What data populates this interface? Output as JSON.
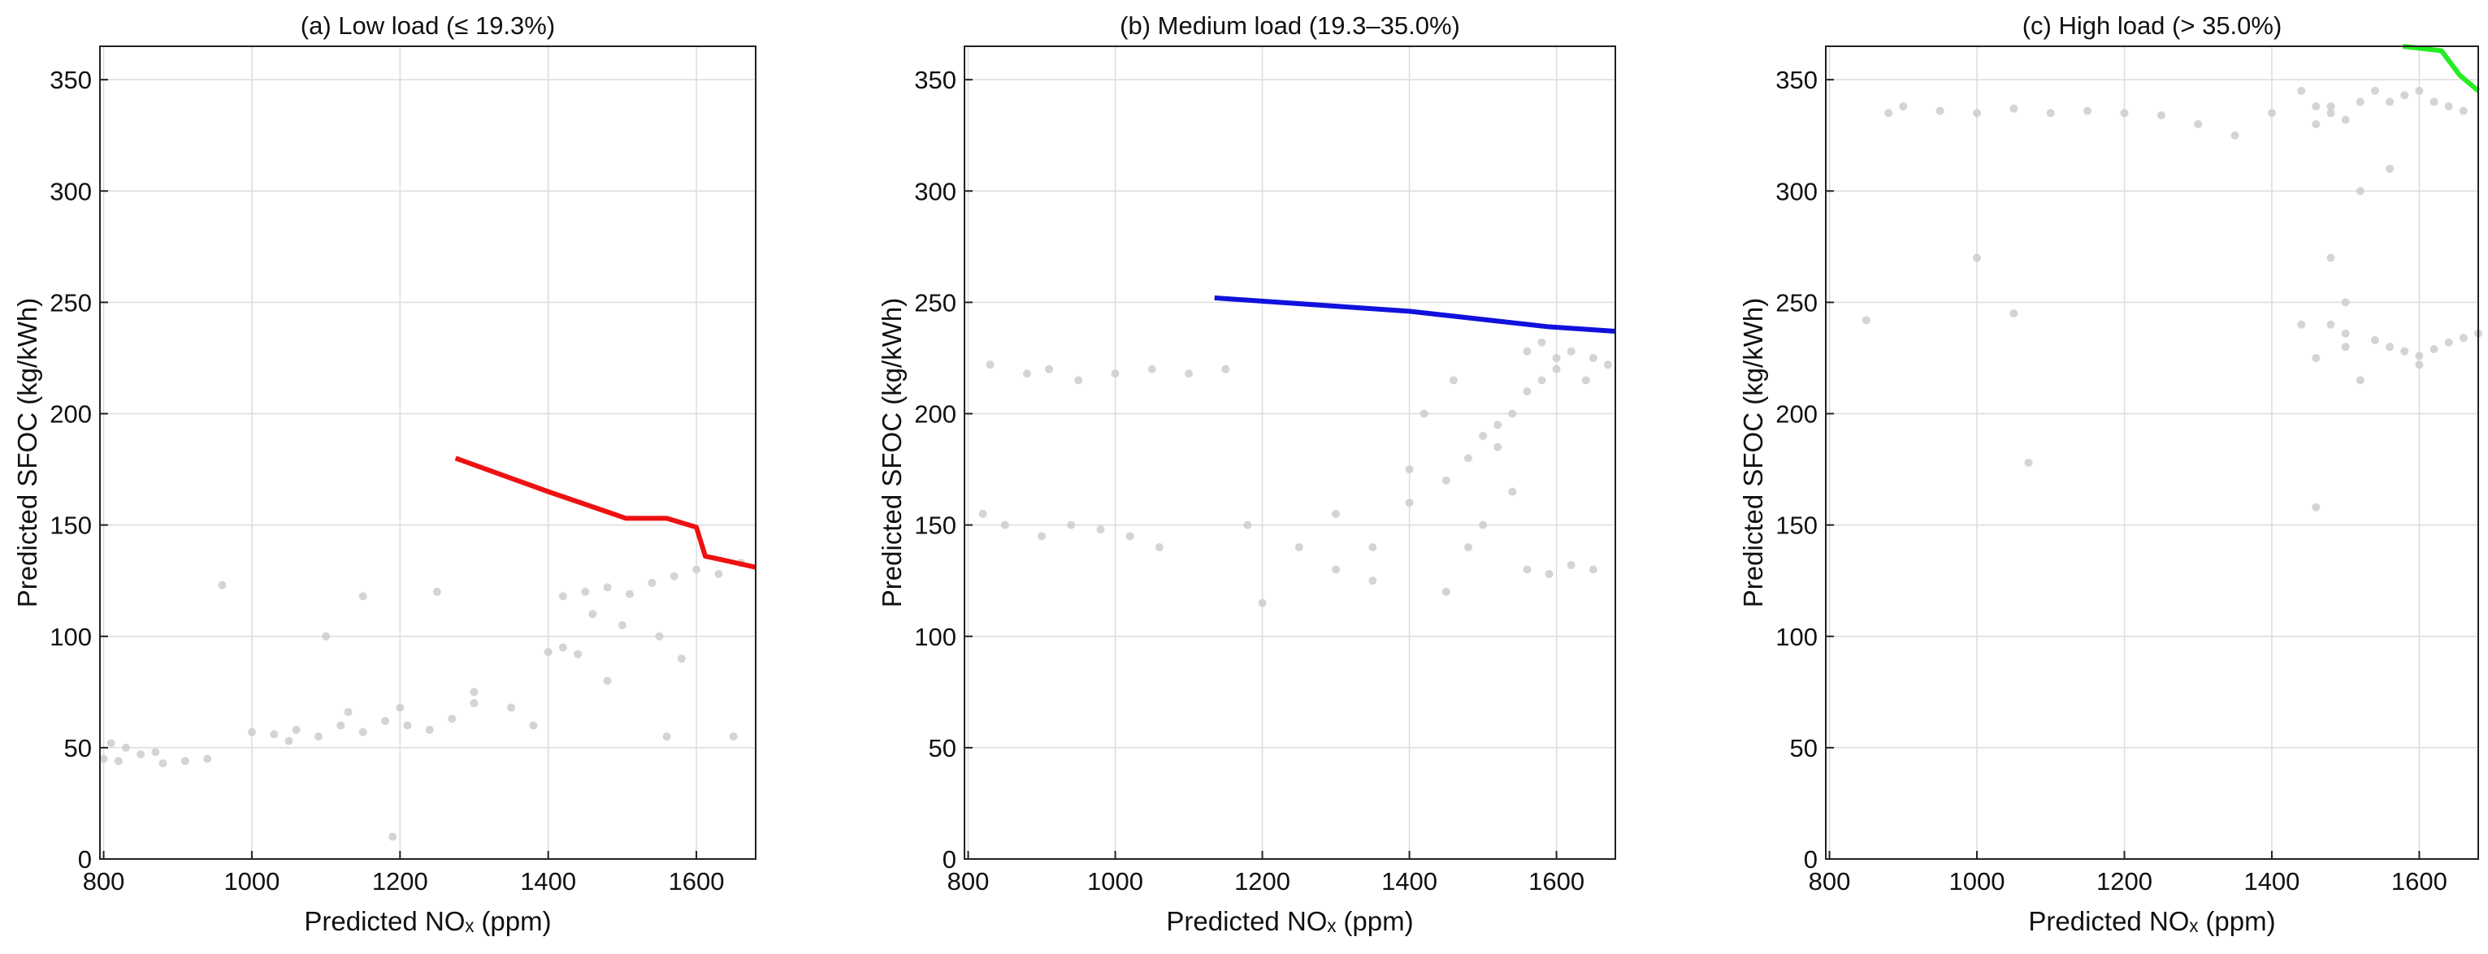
{
  "chart_data": [
    {
      "type": "scatter",
      "title": "(a) Low load (≤ 19.3%)",
      "xlabel": "Predicted NOₓ (ppm)",
      "ylabel": "Predicted SFOC (kg/kWh)",
      "xlim": [
        795,
        1680
      ],
      "ylim": [
        0,
        365
      ],
      "xticks": [
        800,
        1000,
        1200,
        1400,
        1600
      ],
      "yticks": [
        0,
        50,
        100,
        150,
        200,
        250,
        300,
        350
      ],
      "grid": true,
      "series": [
        {
          "mode": "markers",
          "color": "#cccccc",
          "x": [
            800,
            820,
            850,
            880,
            910,
            940,
            810,
            830,
            870,
            1000,
            1030,
            1060,
            1090,
            1120,
            1150,
            1180,
            1210,
            1240,
            1270,
            1050,
            1130,
            1200,
            1300,
            1350,
            1420,
            1450,
            1480,
            1510,
            1540,
            1570,
            1600,
            1630,
            1660,
            1460,
            1500,
            1550,
            1580,
            1400,
            1420,
            1440,
            1380,
            1300,
            1250,
            1150,
            1100,
            960,
            1190,
            1650,
            1560,
            1480
          ],
          "values": [
            45,
            44,
            47,
            43,
            44,
            45,
            52,
            50,
            48,
            57,
            56,
            58,
            55,
            60,
            57,
            62,
            60,
            58,
            63,
            53,
            66,
            68,
            70,
            68,
            118,
            120,
            122,
            119,
            124,
            127,
            130,
            128,
            133,
            110,
            105,
            100,
            90,
            93,
            95,
            92,
            60,
            75,
            120,
            118,
            100,
            123,
            10,
            55,
            55,
            80
          ]
        },
        {
          "mode": "lines",
          "color": "#ee1111",
          "x": [
            1275,
            1400,
            1505,
            1560,
            1600,
            1612,
            1640,
            1680
          ],
          "values": [
            180,
            165,
            153,
            153,
            149,
            136,
            134,
            131
          ]
        }
      ]
    },
    {
      "type": "scatter",
      "title": "(b) Medium load (19.3–35.0%)",
      "xlabel": "Predicted NOₓ (ppm)",
      "ylabel": "Predicted SFOC (kg/kWh)",
      "xlim": [
        795,
        1680
      ],
      "ylim": [
        0,
        365
      ],
      "xticks": [
        800,
        1000,
        1200,
        1400,
        1600
      ],
      "yticks": [
        0,
        50,
        100,
        150,
        200,
        250,
        300,
        350
      ],
      "grid": true,
      "series": [
        {
          "mode": "markers",
          "color": "#cccccc",
          "x": [
            820,
            850,
            880,
            910,
            950,
            1000,
            1050,
            1100,
            1150,
            830,
            900,
            940,
            980,
            1020,
            1060,
            1180,
            1250,
            1300,
            1350,
            1400,
            1450,
            1480,
            1500,
            1520,
            1540,
            1560,
            1580,
            1600,
            1620,
            1650,
            1670,
            1560,
            1590,
            1620,
            1650,
            1540,
            1500,
            1480,
            1450,
            1420,
            1560,
            1580,
            1600,
            1520,
            1400,
            1350,
            1300,
            1200,
            1640,
            1460
          ],
          "values": [
            155,
            150,
            218,
            220,
            215,
            218,
            220,
            218,
            220,
            222,
            145,
            150,
            148,
            145,
            140,
            150,
            140,
            155,
            140,
            160,
            170,
            180,
            190,
            195,
            200,
            210,
            215,
            225,
            228,
            225,
            222,
            130,
            128,
            132,
            130,
            165,
            150,
            140,
            120,
            200,
            228,
            232,
            220,
            185,
            175,
            125,
            130,
            115,
            215,
            215
          ]
        },
        {
          "mode": "lines",
          "color": "#1111dd",
          "x": [
            1135,
            1400,
            1590,
            1680
          ],
          "values": [
            252,
            246,
            239,
            237
          ]
        }
      ]
    },
    {
      "type": "scatter",
      "title": "(c) High load (> 35.0%)",
      "xlabel": "Predicted NOₓ (ppm)",
      "ylabel": "Predicted SFOC (kg/kWh)",
      "xlim": [
        795,
        1680
      ],
      "ylim": [
        0,
        365
      ],
      "xticks": [
        800,
        1000,
        1200,
        1400,
        1600
      ],
      "yticks": [
        0,
        50,
        100,
        150,
        200,
        250,
        300,
        350
      ],
      "grid": true,
      "series": [
        {
          "mode": "markers",
          "color": "#cccccc",
          "x": [
            850,
            880,
            900,
            950,
            1000,
            1050,
            1100,
            1150,
            1200,
            1250,
            1300,
            1350,
            1400,
            1440,
            1460,
            1480,
            1500,
            1520,
            1460,
            1480,
            1500,
            1540,
            1560,
            1580,
            1600,
            1620,
            1640,
            1660,
            1680,
            1540,
            1560,
            1580,
            1600,
            1620,
            1640,
            1660,
            1480,
            1500,
            1520,
            1560,
            1460,
            1480,
            1500,
            1440,
            1050,
            1070,
            1000,
            1460,
            1520,
            1600
          ],
          "values": [
            242,
            335,
            338,
            336,
            335,
            337,
            335,
            336,
            335,
            334,
            330,
            325,
            335,
            345,
            338,
            335,
            332,
            340,
            330,
            338,
            236,
            233,
            230,
            228,
            226,
            229,
            232,
            234,
            236,
            345,
            340,
            343,
            345,
            340,
            338,
            336,
            270,
            250,
            300,
            310,
            225,
            240,
            230,
            240,
            245,
            178,
            270,
            158,
            215,
            222
          ]
        },
        {
          "mode": "lines",
          "color": "#22ee22",
          "x": [
            1578,
            1630,
            1655,
            1680
          ],
          "values": [
            365,
            363,
            352,
            345
          ]
        }
      ]
    }
  ]
}
